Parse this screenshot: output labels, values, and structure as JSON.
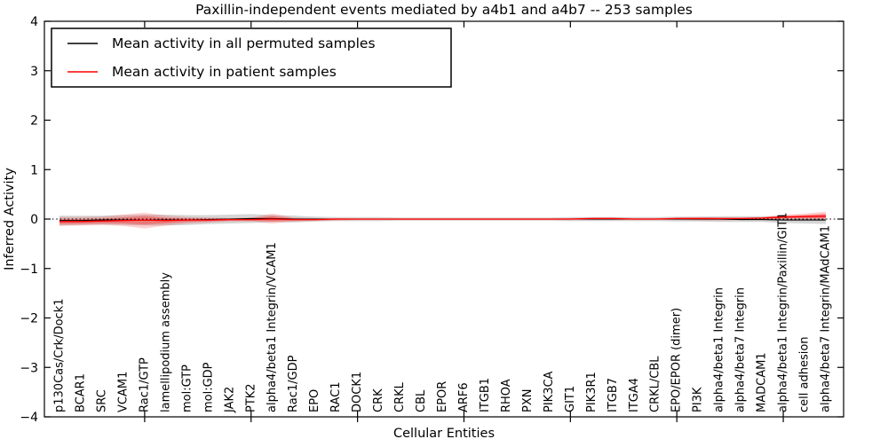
{
  "figure": {
    "title": "Paxillin-independent events mediated by a4b1 and a4b7 -- 253 samples",
    "xlabel": "Cellular Entities",
    "ylabel": "Inferred Activity",
    "legend": {
      "permuted": {
        "label": "Mean activity in all permuted samples",
        "color": "#000000"
      },
      "patient": {
        "label": "Mean activity in patient samples",
        "color": "#ff0000"
      }
    },
    "colors": {
      "permuted_line": "#000000",
      "permuted_band": "#999999",
      "patient_line": "#ff0000",
      "patient_band": "#ff0000",
      "zero_line": "#000000",
      "frame": "#000000"
    }
  },
  "chart_data": {
    "type": "line",
    "title": "Paxillin-independent events mediated by a4b1 and a4b7 -- 253 samples",
    "xlabel": "Cellular Entities",
    "ylabel": "Inferred Activity",
    "ylim": [
      -4,
      4
    ],
    "yticks": [
      -4,
      -3,
      -2,
      -1,
      0,
      1,
      2,
      3,
      4
    ],
    "xtick_indices": [
      4,
      9,
      14,
      19,
      24,
      29,
      34
    ],
    "grid": false,
    "zero_line_dotted": true,
    "legend_position": "upper left",
    "categories": [
      "p130Cas/Crk/Dock1",
      "BCAR1",
      "SRC",
      "VCAM1",
      "Rac1/GTP",
      "lamellipodium assembly",
      "mol:GTP",
      "mol:GDP",
      "JAK2",
      "PTK2",
      "alpha4/beta1 Integrin/VCAM1",
      "Rac1/GDP",
      "EPO",
      "RAC1",
      "DOCK1",
      "CRK",
      "CRKL",
      "CBL",
      "EPOR",
      "ARF6",
      "ITGB1",
      "RHOA",
      "PXN",
      "PIK3CA",
      "GIT1",
      "PIK3R1",
      "ITGB7",
      "ITGA4",
      "CRKL/CBL",
      "EPO/EPOR (dimer)",
      "PI3K",
      "alpha4/beta1 Integrin",
      "alpha4/beta7 Integrin",
      "MADCAM1",
      "alpha4/beta1 Integrin/Paxillin/GIT1",
      "cell adhesion",
      "alpha4/beta7 Integrin/MAdCAM1"
    ],
    "series": [
      {
        "name": "Mean activity in all permuted samples",
        "color": "#000000",
        "band_color": "#999999",
        "values": [
          -0.03,
          -0.03,
          -0.02,
          -0.02,
          -0.02,
          -0.02,
          -0.02,
          -0.01,
          0,
          0.01,
          0.01,
          0,
          0,
          0,
          0,
          0,
          0,
          0,
          0,
          0,
          0,
          0,
          0,
          0,
          0,
          0,
          0,
          0,
          0,
          0,
          0,
          0,
          -0.01,
          -0.01,
          -0.02,
          -0.02,
          -0.02
        ],
        "band_upper": [
          0.07,
          0.07,
          0.07,
          0.08,
          0.09,
          0.09,
          0.08,
          0.08,
          0.09,
          0.1,
          0.08,
          0.07,
          0.05,
          0.04,
          0.04,
          0.04,
          0.03,
          0.03,
          0.03,
          0.03,
          0.03,
          0.03,
          0.03,
          0.03,
          0.04,
          0.04,
          0.04,
          0.04,
          0.04,
          0.05,
          0.05,
          0.06,
          0.06,
          0.06,
          0.06,
          0.07,
          0.08
        ],
        "band_lower": [
          -0.13,
          -0.12,
          -0.11,
          -0.12,
          -0.13,
          -0.13,
          -0.12,
          -0.1,
          -0.09,
          -0.08,
          -0.06,
          -0.07,
          -0.05,
          -0.04,
          -0.04,
          -0.04,
          -0.03,
          -0.03,
          -0.03,
          -0.03,
          -0.03,
          -0.03,
          -0.03,
          -0.03,
          -0.04,
          -0.04,
          -0.04,
          -0.04,
          -0.04,
          -0.05,
          -0.05,
          -0.06,
          -0.06,
          -0.06,
          -0.08,
          -0.09,
          -0.1
        ]
      },
      {
        "name": "Mean activity in patient samples",
        "color": "#ff0000",
        "band_color": "#ff0000",
        "values": [
          -0.05,
          -0.05,
          -0.04,
          -0.03,
          -0.02,
          -0.03,
          -0.02,
          -0.02,
          -0.01,
          -0.01,
          0,
          -0.01,
          -0.01,
          0,
          0,
          0,
          0,
          0,
          0,
          0,
          0,
          0,
          0,
          0,
          0,
          0.01,
          0.01,
          0,
          0,
          0.01,
          0.01,
          0.01,
          0.01,
          0.02,
          0.04,
          0.05,
          0.06
        ],
        "band_upper": [
          0.04,
          0.04,
          0.05,
          0.09,
          0.13,
          0.07,
          0.04,
          0.03,
          0.02,
          0.03,
          0.11,
          0.03,
          0.02,
          0.02,
          0.01,
          0.01,
          0.01,
          0.01,
          0.01,
          0.01,
          0.01,
          0.01,
          0.01,
          0.01,
          0.02,
          0.03,
          0.03,
          0.02,
          0.02,
          0.03,
          0.04,
          0.03,
          0.03,
          0.04,
          0.09,
          0.11,
          0.15
        ],
        "band_lower": [
          -0.14,
          -0.13,
          -0.12,
          -0.14,
          -0.19,
          -0.13,
          -0.09,
          -0.07,
          -0.05,
          -0.05,
          -0.09,
          -0.05,
          -0.04,
          -0.03,
          -0.02,
          -0.02,
          -0.02,
          -0.02,
          -0.02,
          -0.02,
          -0.02,
          -0.02,
          -0.02,
          -0.02,
          -0.02,
          -0.02,
          -0.02,
          -0.02,
          -0.02,
          -0.02,
          -0.03,
          -0.03,
          -0.02,
          -0.02,
          -0.01,
          -0.01,
          -0.02
        ]
      }
    ]
  }
}
